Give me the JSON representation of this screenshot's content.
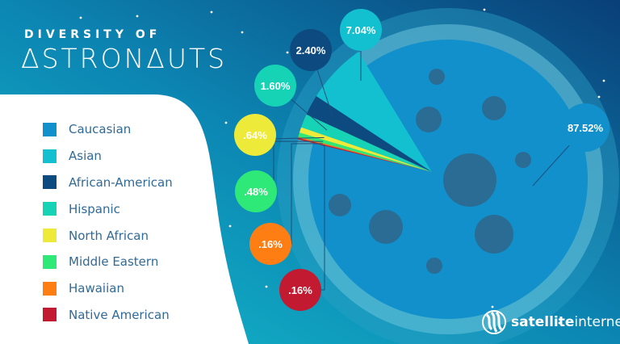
{
  "title": {
    "line1": "DIVERSITY OF",
    "line2": "ΔSTRONΔUTS"
  },
  "logo": {
    "bold": "satellite",
    "light": "internet"
  },
  "chart_data": {
    "type": "pie",
    "title": "DIVERSITY OF ASTRONAUTS",
    "legend_position": "left",
    "series": [
      {
        "name": "Caucasian",
        "value": 87.52,
        "label": "87.52%",
        "color": "#1190cc"
      },
      {
        "name": "Asian",
        "value": 7.04,
        "label": "7.04%",
        "color": "#13c0d0"
      },
      {
        "name": "African-American",
        "value": 2.4,
        "label": "2.40%",
        "color": "#0d4a80"
      },
      {
        "name": "Hispanic",
        "value": 1.6,
        "label": "1.60%",
        "color": "#17d3b5"
      },
      {
        "name": "North African",
        "value": 0.64,
        "label": ".64%",
        "color": "#eeea3a"
      },
      {
        "name": "Middle Eastern",
        "value": 0.48,
        "label": ".48%",
        "color": "#2ee878"
      },
      {
        "name": "Hawaiian",
        "value": 0.16,
        "label": ".16%",
        "color": "#ff7e14"
      },
      {
        "name": "Native American",
        "value": 0.16,
        "label": ".16%",
        "color": "#c21a30"
      }
    ]
  }
}
